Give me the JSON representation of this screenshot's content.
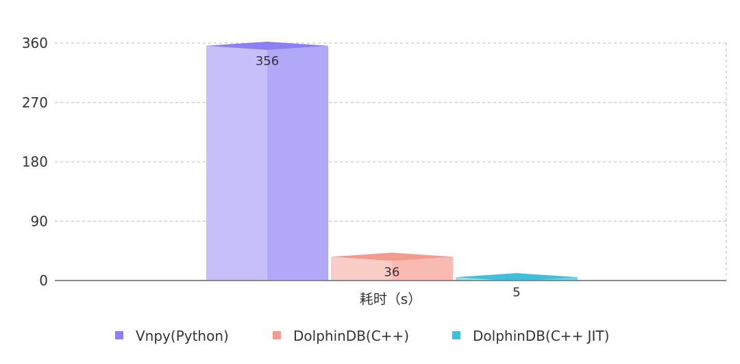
{
  "chart_data": {
    "type": "bar",
    "categories": [
      "耗时（s）"
    ],
    "series": [
      {
        "name": "Vnpy(Python)",
        "values": [
          356
        ],
        "color": "#8c7ff5"
      },
      {
        "name": "DolphinDB(C++)",
        "values": [
          36
        ],
        "color": "#f59a8f"
      },
      {
        "name": "DolphinDB(C++ JIT)",
        "values": [
          5
        ],
        "color": "#3fbfd9"
      }
    ],
    "yticks": [
      "0",
      "90",
      "180",
      "270",
      "360"
    ],
    "ylim": [
      0,
      360
    ],
    "grid": true,
    "gridline_style": "dashed",
    "legend": "bottom",
    "style": "3d-bars"
  }
}
